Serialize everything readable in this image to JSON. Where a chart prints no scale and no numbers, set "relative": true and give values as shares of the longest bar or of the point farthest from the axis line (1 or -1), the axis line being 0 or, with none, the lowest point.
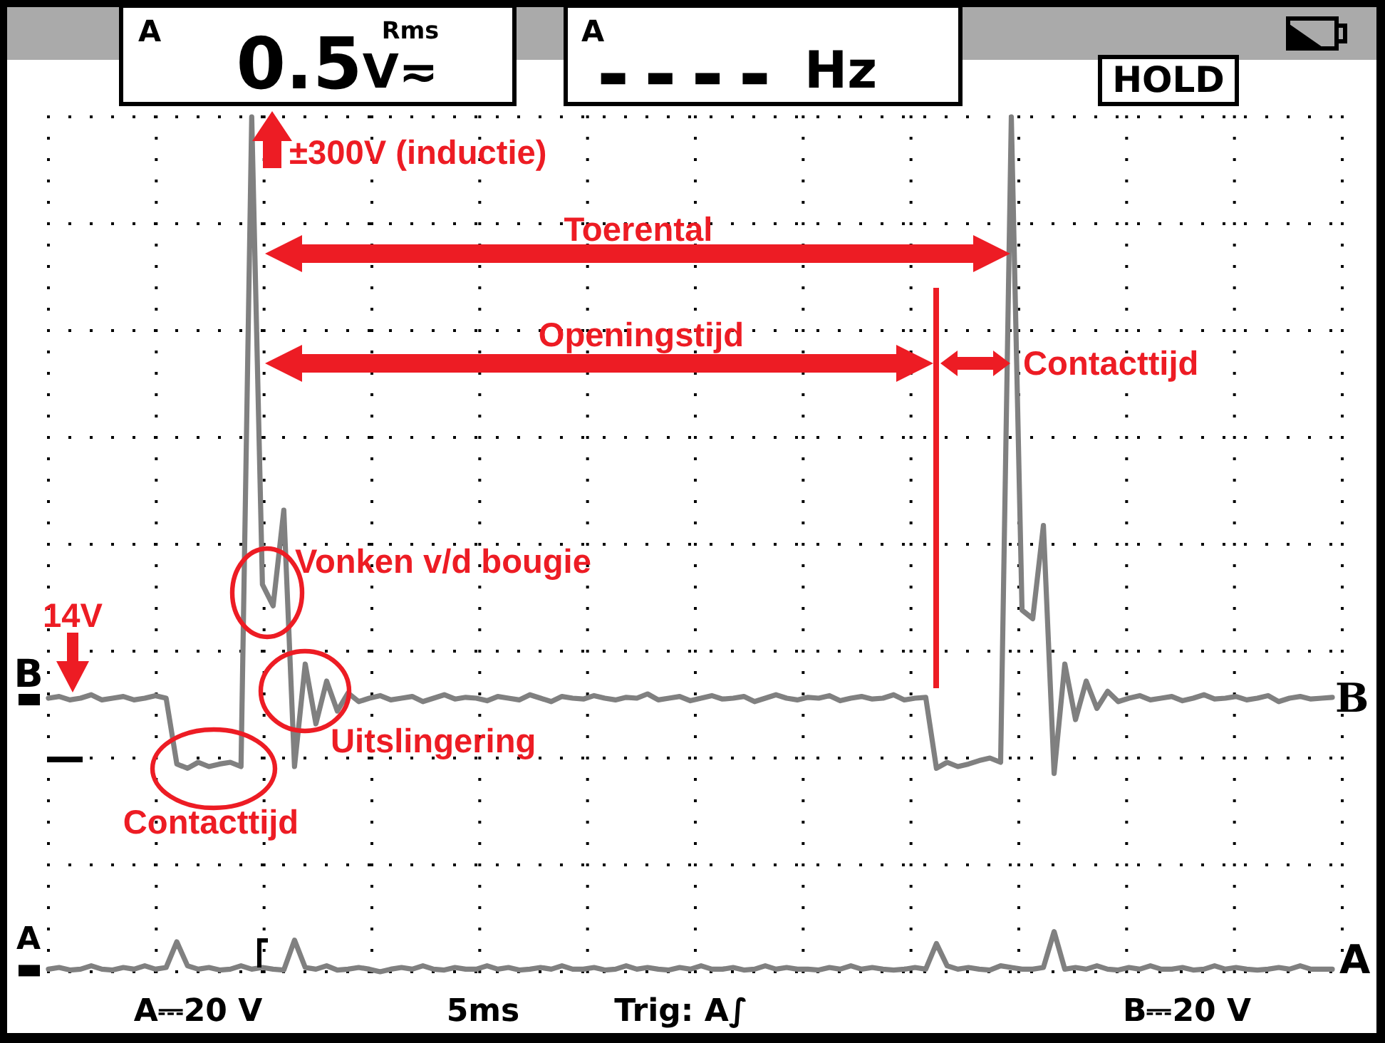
{
  "chart_data": {
    "type": "line",
    "relative": true,
    "grid": true,
    "categories": [
      null,
      null,
      null,
      null,
      null,
      null,
      null,
      null,
      null,
      null,
      null,
      null,
      null,
      null,
      null,
      null,
      null,
      null,
      null,
      null,
      null,
      null,
      null,
      null,
      null,
      null,
      null,
      null,
      null,
      null,
      null,
      null,
      null,
      null,
      null,
      null,
      null,
      null,
      null,
      null,
      null,
      null,
      null,
      null,
      null,
      null,
      null,
      null,
      null,
      null,
      null,
      null,
      null,
      null,
      null,
      null,
      null,
      null,
      null,
      null,
      null,
      null,
      null,
      null,
      null,
      null,
      null,
      null,
      null,
      null,
      null,
      null,
      null,
      null,
      null,
      null,
      null,
      null,
      null,
      null,
      null,
      null,
      null,
      null,
      null,
      null,
      null,
      null,
      null,
      null,
      null,
      null,
      null,
      null,
      null,
      null,
      null,
      null,
      null,
      null,
      null,
      null,
      null,
      null,
      null,
      null,
      null,
      null,
      null,
      null,
      null,
      null,
      null,
      null,
      null,
      null,
      null,
      null,
      null,
      null,
      null
    ],
    "series": [
      {
        "name": "B",
        "color": "#808080",
        "values": [
          0.32,
          0.322,
          0.318,
          0.32,
          0.324,
          0.318,
          0.32,
          0.322,
          0.318,
          0.32,
          0.323,
          0.32,
          0.243,
          0.238,
          0.245,
          0.24,
          0.243,
          0.245,
          0.24,
          1.0,
          0.453,
          0.428,
          0.54,
          0.24,
          0.36,
          0.29,
          0.34,
          0.305,
          0.326,
          0.316,
          0.32,
          0.323,
          0.318,
          0.32,
          0.322,
          0.316,
          0.32,
          0.324,
          0.319,
          0.321,
          0.32,
          0.317,
          0.322,
          0.32,
          0.318,
          0.324,
          0.32,
          0.316,
          0.322,
          0.32,
          0.319,
          0.323,
          0.32,
          0.318,
          0.321,
          0.32,
          0.325,
          0.318,
          0.32,
          0.322,
          0.317,
          0.32,
          0.323,
          0.319,
          0.32,
          0.322,
          0.316,
          0.32,
          0.324,
          0.32,
          0.318,
          0.321,
          0.32,
          0.323,
          0.317,
          0.32,
          0.322,
          0.319,
          0.32,
          0.324,
          0.318,
          0.32,
          0.321,
          0.238,
          0.245,
          0.24,
          0.243,
          0.247,
          0.25,
          0.245,
          1.0,
          0.423,
          0.413,
          0.522,
          0.232,
          0.36,
          0.295,
          0.34,
          0.308,
          0.328,
          0.316,
          0.32,
          0.323,
          0.318,
          0.32,
          0.322,
          0.317,
          0.32,
          0.324,
          0.319,
          0.32,
          0.322,
          0.318,
          0.32,
          0.323,
          0.316,
          0.32,
          0.322,
          0.319,
          0.32,
          0.321
        ]
      },
      {
        "name": "A",
        "color": "#808080",
        "values": [
          0.003,
          0.005,
          0.002,
          0.003,
          0.007,
          0.003,
          0.002,
          0.005,
          0.003,
          0.007,
          0.003,
          0.005,
          0.035,
          0.007,
          0.003,
          0.005,
          0.002,
          0.003,
          0.007,
          0.003,
          0.005,
          0.003,
          0.002,
          0.037,
          0.005,
          0.003,
          0.007,
          0.002,
          0.003,
          0.005,
          0.003,
          0.0,
          0.003,
          0.005,
          0.003,
          0.007,
          0.003,
          0.002,
          0.005,
          0.003,
          0.003,
          0.007,
          0.003,
          0.005,
          0.002,
          0.003,
          0.005,
          0.003,
          0.007,
          0.003,
          0.003,
          0.005,
          0.002,
          0.003,
          0.007,
          0.003,
          0.005,
          0.003,
          0.002,
          0.005,
          0.003,
          0.007,
          0.003,
          0.003,
          0.005,
          0.002,
          0.003,
          0.007,
          0.003,
          0.005,
          0.003,
          0.003,
          0.002,
          0.005,
          0.003,
          0.007,
          0.003,
          0.005,
          0.003,
          0.002,
          0.003,
          0.005,
          0.003,
          0.033,
          0.007,
          0.003,
          0.005,
          0.003,
          0.002,
          0.007,
          0.005,
          0.003,
          0.003,
          0.005,
          0.047,
          0.003,
          0.005,
          0.003,
          0.007,
          0.003,
          0.002,
          0.005,
          0.003,
          0.007,
          0.003,
          0.003,
          0.005,
          0.002,
          0.003,
          0.007,
          0.003,
          0.005,
          0.003,
          0.002,
          0.003,
          0.005,
          0.003,
          0.007,
          0.003,
          0.003,
          0.003
        ]
      }
    ],
    "annotations": [
      "±300V (inductie)",
      "Toerental",
      "Openingstijd",
      "Contacttijd",
      "Vonken v/d bougie",
      "14V",
      "Uitslingering",
      "Contacttijd",
      "A",
      "0.5",
      "Rms",
      "V≂",
      "A",
      "----",
      "Hz",
      "HOLD",
      "A⎓20 V",
      "5ms",
      "Trig: A∫",
      "B⎓20 V"
    ]
  }
}
